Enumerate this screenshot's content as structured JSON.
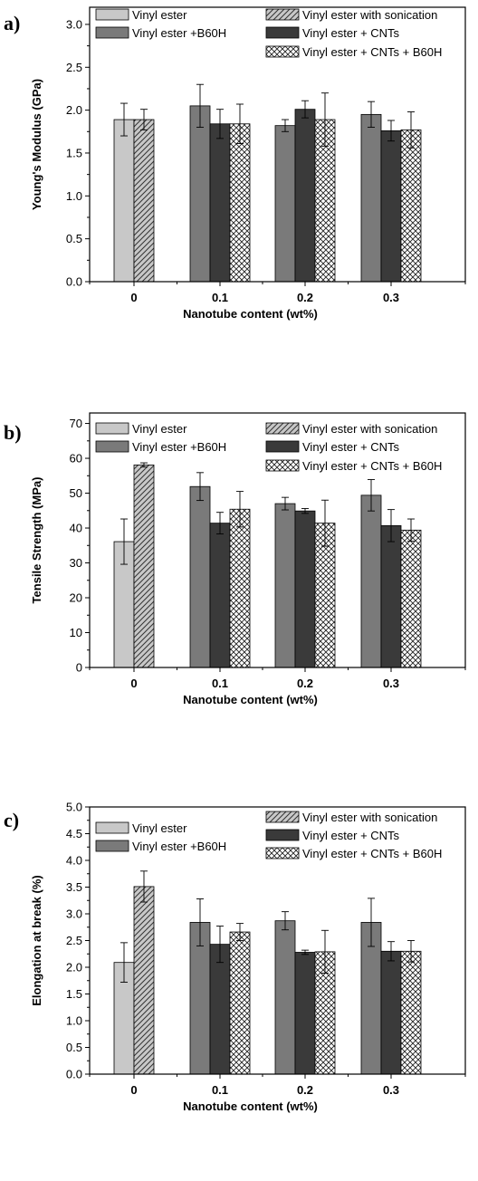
{
  "figure": {
    "x_axis_title": "Nanotube content (wt%)"
  },
  "legend_labels": [
    "Vinyl ester",
    "Vinyl ester +B60H",
    "Vinyl ester with sonication",
    "Vinyl ester + CNTs",
    "Vinyl ester + CNTs + B60H"
  ],
  "colors": {
    "vinyl_ester": "#c8c8c8",
    "vinyl_ester_b60h": "#7a7a7a",
    "vinyl_ester_sonication": "#c8c8c8",
    "vinyl_ester_cnts": "#3a3a3a",
    "vinyl_ester_cnts_b60h": "#ffffff"
  },
  "chart_data": [
    {
      "type": "bar",
      "panel_label": "a)",
      "categories": [
        "0",
        "0.1",
        "0.2",
        "0.3"
      ],
      "xlabel": "Nanotube content (wt%)",
      "ylabel": "Young's Modulus (GPa)",
      "ylim": [
        0,
        3.2
      ],
      "yticks": [
        "0.0",
        "0.5",
        "1.0",
        "1.5",
        "2.0",
        "2.5",
        "3.0"
      ],
      "grid": false,
      "legend_position": "top",
      "series": [
        {
          "name": "Vinyl ester",
          "values": [
            1.89,
            null,
            null,
            null
          ],
          "errors": [
            0.19,
            null,
            null,
            null
          ]
        },
        {
          "name": "Vinyl ester with sonication",
          "values": [
            1.89,
            null,
            null,
            null
          ],
          "errors": [
            0.12,
            null,
            null,
            null
          ]
        },
        {
          "name": "Vinyl ester +B60H",
          "values": [
            null,
            2.05,
            1.82,
            1.95
          ],
          "errors": [
            null,
            0.25,
            0.07,
            0.15
          ]
        },
        {
          "name": "Vinyl ester + CNTs",
          "values": [
            null,
            1.84,
            2.01,
            1.76
          ],
          "errors": [
            null,
            0.17,
            0.1,
            0.12
          ]
        },
        {
          "name": "Vinyl ester + CNTs + B60H",
          "values": [
            null,
            1.84,
            1.89,
            1.77
          ],
          "errors": [
            null,
            0.23,
            0.31,
            0.21
          ]
        }
      ]
    },
    {
      "type": "bar",
      "panel_label": "b)",
      "categories": [
        "0",
        "0.1",
        "0.2",
        "0.3"
      ],
      "xlabel": "Nanotube content (wt%)",
      "ylabel": "Tensile Strength (MPa)",
      "ylim": [
        0,
        73
      ],
      "yticks": [
        "0",
        "10",
        "20",
        "30",
        "40",
        "50",
        "60",
        "70"
      ],
      "grid": false,
      "legend_position": "top",
      "series": [
        {
          "name": "Vinyl ester",
          "values": [
            36.1,
            null,
            null,
            null
          ],
          "errors": [
            6.5,
            null,
            null,
            null
          ]
        },
        {
          "name": "Vinyl ester with sonication",
          "values": [
            58.1,
            null,
            null,
            null
          ],
          "errors": [
            0.6,
            null,
            null,
            null
          ]
        },
        {
          "name": "Vinyl ester +B60H",
          "values": [
            null,
            51.9,
            47.0,
            49.4
          ],
          "errors": [
            null,
            4.0,
            1.8,
            4.5
          ]
        },
        {
          "name": "Vinyl ester + CNTs",
          "values": [
            null,
            41.4,
            44.9,
            40.7
          ],
          "errors": [
            null,
            3.1,
            0.7,
            4.6
          ]
        },
        {
          "name": "Vinyl ester + CNTs + B60H",
          "values": [
            null,
            45.4,
            41.4,
            39.4
          ],
          "errors": [
            null,
            5.1,
            6.6,
            3.2
          ]
        }
      ]
    },
    {
      "type": "bar",
      "panel_label": "c)",
      "categories": [
        "0",
        "0.1",
        "0.2",
        "0.3"
      ],
      "xlabel": "Nanotube content (wt%)",
      "ylabel": "Elongation at break (%)",
      "ylim": [
        0,
        5.0
      ],
      "yticks": [
        "0.0",
        "0.5",
        "1.0",
        "1.5",
        "2.0",
        "2.5",
        "3.0",
        "3.5",
        "4.0",
        "4.5",
        "5.0"
      ],
      "grid": false,
      "legend_position": "top",
      "series": [
        {
          "name": "Vinyl ester",
          "values": [
            2.09,
            null,
            null,
            null
          ],
          "errors": [
            0.37,
            null,
            null,
            null
          ]
        },
        {
          "name": "Vinyl ester with sonication",
          "values": [
            3.51,
            null,
            null,
            null
          ],
          "errors": [
            0.29,
            null,
            null,
            null
          ]
        },
        {
          "name": "Vinyl ester +B60H",
          "values": [
            null,
            2.84,
            2.87,
            2.84
          ],
          "errors": [
            null,
            0.44,
            0.17,
            0.45
          ]
        },
        {
          "name": "Vinyl ester + CNTs",
          "values": [
            null,
            2.43,
            2.28,
            2.3
          ],
          "errors": [
            null,
            0.34,
            0.04,
            0.18
          ]
        },
        {
          "name": "Vinyl ester + CNTs + B60H",
          "values": [
            null,
            2.66,
            2.29,
            2.3
          ],
          "errors": [
            null,
            0.16,
            0.4,
            0.2
          ]
        }
      ]
    }
  ]
}
